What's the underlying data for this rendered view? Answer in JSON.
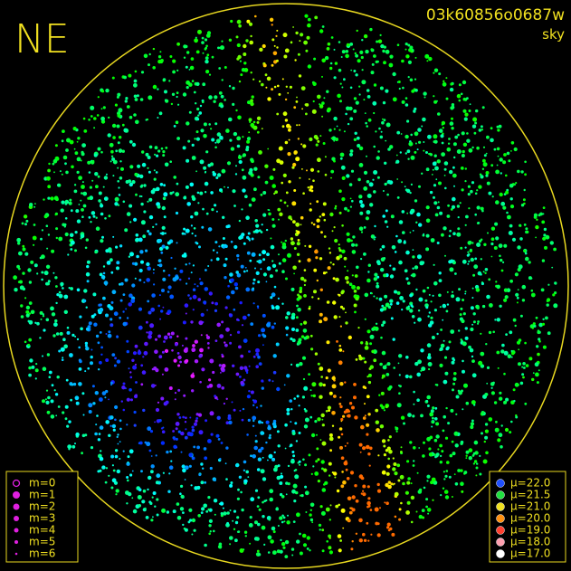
{
  "header": {
    "direction": "NE",
    "frame_id": "03k60856o0687w",
    "mode": "sky"
  },
  "magnitude_legend": [
    "m=0",
    "m=1",
    "m=2",
    "m=3",
    "m=4",
    "m=5",
    "m=6"
  ],
  "brightness_legend": [
    "μ=22.0",
    "μ=21.5",
    "μ=21.0",
    "μ=20.0",
    "μ=19.0",
    "μ=18.0",
    "μ=17.0"
  ]
}
